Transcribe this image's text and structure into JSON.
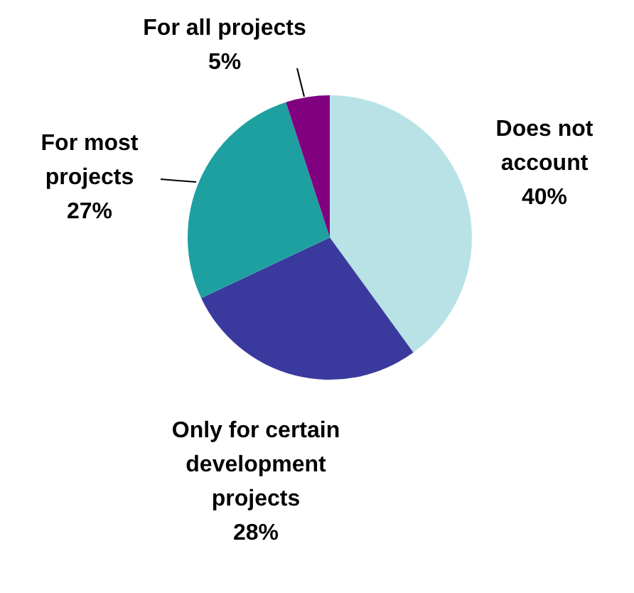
{
  "chart_data": {
    "type": "pie",
    "categories": [
      "Does not account",
      "Only for certain development projects",
      "For most projects",
      "For all projects"
    ],
    "values": [
      40,
      28,
      27,
      5
    ],
    "colors": [
      "#b8e2e6",
      "#3a3a9e",
      "#1fa0a0",
      "#800080"
    ],
    "value_labels": [
      "40%",
      "28%",
      "27%",
      "5%"
    ],
    "legend": false
  }
}
